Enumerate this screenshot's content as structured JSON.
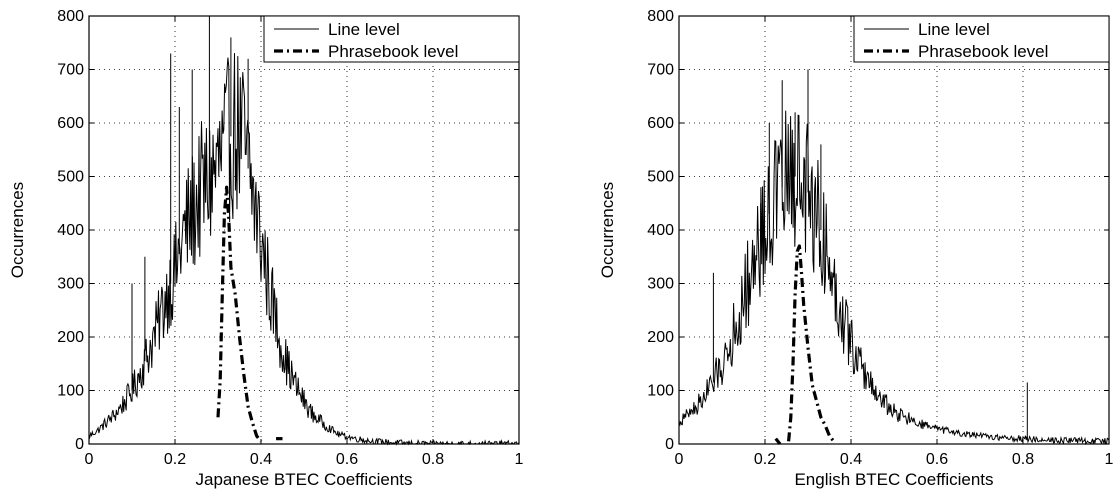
{
  "chart_data": [
    {
      "type": "line",
      "title": "",
      "xlabel": "Japanese BTEC Coefficients",
      "ylabel": "Occurrences",
      "xlim": [
        0,
        1
      ],
      "ylim": [
        0,
        800
      ],
      "xticks": [
        0,
        0.2,
        0.4,
        0.6,
        0.8,
        1
      ],
      "xtick_labels": [
        "0",
        "0.2",
        "0.4",
        "0.6",
        "0.8",
        "1"
      ],
      "yticks": [
        0,
        100,
        200,
        300,
        400,
        500,
        600,
        700,
        800
      ],
      "ytick_labels": [
        "0",
        "100",
        "200",
        "300",
        "400",
        "500",
        "600",
        "700",
        "800"
      ],
      "grid": true,
      "legend_position": "top-right",
      "series": [
        {
          "name": "Line level",
          "style": "solid-thin",
          "color": "#000000",
          "x": [
            0,
            0.02,
            0.04,
            0.06,
            0.08,
            0.1,
            0.12,
            0.14,
            0.16,
            0.18,
            0.2,
            0.22,
            0.24,
            0.26,
            0.28,
            0.3,
            0.32,
            0.34,
            0.36,
            0.38,
            0.4,
            0.42,
            0.44,
            0.46,
            0.48,
            0.5,
            0.52,
            0.55,
            0.58,
            0.62,
            0.66,
            0.7,
            0.74,
            0.8,
            0.9,
            1.0
          ],
          "y": [
            15,
            25,
            40,
            55,
            75,
            100,
            135,
            175,
            220,
            280,
            320,
            390,
            430,
            470,
            490,
            520,
            560,
            590,
            560,
            470,
            380,
            290,
            210,
            150,
            110,
            80,
            55,
            35,
            18,
            10,
            5,
            3,
            1,
            0,
            0,
            0
          ],
          "spikes": [
            {
              "x": 0.1,
              "y": 300
            },
            {
              "x": 0.13,
              "y": 350
            },
            {
              "x": 0.19,
              "y": 730
            },
            {
              "x": 0.21,
              "y": 630
            },
            {
              "x": 0.24,
              "y": 700
            },
            {
              "x": 0.28,
              "y": 800
            },
            {
              "x": 0.33,
              "y": 760
            },
            {
              "x": 0.37,
              "y": 720
            }
          ]
        },
        {
          "name": "Phrasebook level",
          "style": "dash-dot-thick",
          "color": "#000000",
          "x": [
            0.3,
            0.305,
            0.31,
            0.315,
            0.32,
            0.325,
            0.33,
            0.34,
            0.35,
            0.36,
            0.37,
            0.38,
            0.39,
            0.4
          ],
          "y": [
            50,
            120,
            280,
            430,
            480,
            420,
            330,
            280,
            200,
            130,
            70,
            40,
            15,
            5
          ],
          "segments": [
            {
              "x": [
                0.435,
                0.45
              ],
              "y": [
                10,
                10
              ]
            }
          ]
        }
      ]
    },
    {
      "type": "line",
      "title": "",
      "xlabel": "English BTEC Coefficients",
      "ylabel": "Occurrences",
      "xlim": [
        0,
        1
      ],
      "ylim": [
        0,
        800
      ],
      "xticks": [
        0,
        0.2,
        0.4,
        0.6,
        0.8,
        1
      ],
      "xtick_labels": [
        "0",
        "0.2",
        "0.4",
        "0.6",
        "0.8",
        "1"
      ],
      "yticks": [
        0,
        100,
        200,
        300,
        400,
        500,
        600,
        700,
        800
      ],
      "ytick_labels": [
        "0",
        "100",
        "200",
        "300",
        "400",
        "500",
        "600",
        "700",
        "800"
      ],
      "grid": true,
      "legend_position": "top-right",
      "series": [
        {
          "name": "Line level",
          "style": "solid-thin",
          "color": "#000000",
          "x": [
            0,
            0.02,
            0.04,
            0.06,
            0.08,
            0.1,
            0.12,
            0.14,
            0.16,
            0.18,
            0.2,
            0.22,
            0.24,
            0.26,
            0.28,
            0.3,
            0.32,
            0.34,
            0.36,
            0.38,
            0.4,
            0.42,
            0.44,
            0.46,
            0.48,
            0.5,
            0.55,
            0.6,
            0.65,
            0.7,
            0.75,
            0.8,
            0.85,
            0.9,
            0.95,
            1.0
          ],
          "y": [
            40,
            55,
            70,
            90,
            115,
            150,
            190,
            240,
            300,
            360,
            410,
            450,
            480,
            500,
            500,
            470,
            430,
            370,
            300,
            240,
            190,
            150,
            120,
            95,
            75,
            60,
            40,
            28,
            20,
            15,
            12,
            10,
            8,
            7,
            6,
            5
          ],
          "spikes": [
            {
              "x": 0.08,
              "y": 320
            },
            {
              "x": 0.19,
              "y": 450
            },
            {
              "x": 0.21,
              "y": 600
            },
            {
              "x": 0.24,
              "y": 680
            },
            {
              "x": 0.27,
              "y": 620
            },
            {
              "x": 0.3,
              "y": 700
            },
            {
              "x": 0.33,
              "y": 560
            },
            {
              "x": 0.81,
              "y": 115
            },
            {
              "x": 1.0,
              "y": 40
            }
          ]
        },
        {
          "name": "Phrasebook level",
          "style": "dash-dot-thick",
          "color": "#000000",
          "x": [
            0.255,
            0.26,
            0.265,
            0.27,
            0.275,
            0.28,
            0.285,
            0.29,
            0.3,
            0.31,
            0.32,
            0.33,
            0.34,
            0.35,
            0.36
          ],
          "y": [
            5,
            50,
            150,
            280,
            360,
            370,
            320,
            260,
            180,
            110,
            80,
            50,
            35,
            15,
            5
          ],
          "segments": [
            {
              "x": [
                0.225,
                0.235
              ],
              "y": [
                10,
                0
              ]
            }
          ]
        }
      ]
    }
  ]
}
